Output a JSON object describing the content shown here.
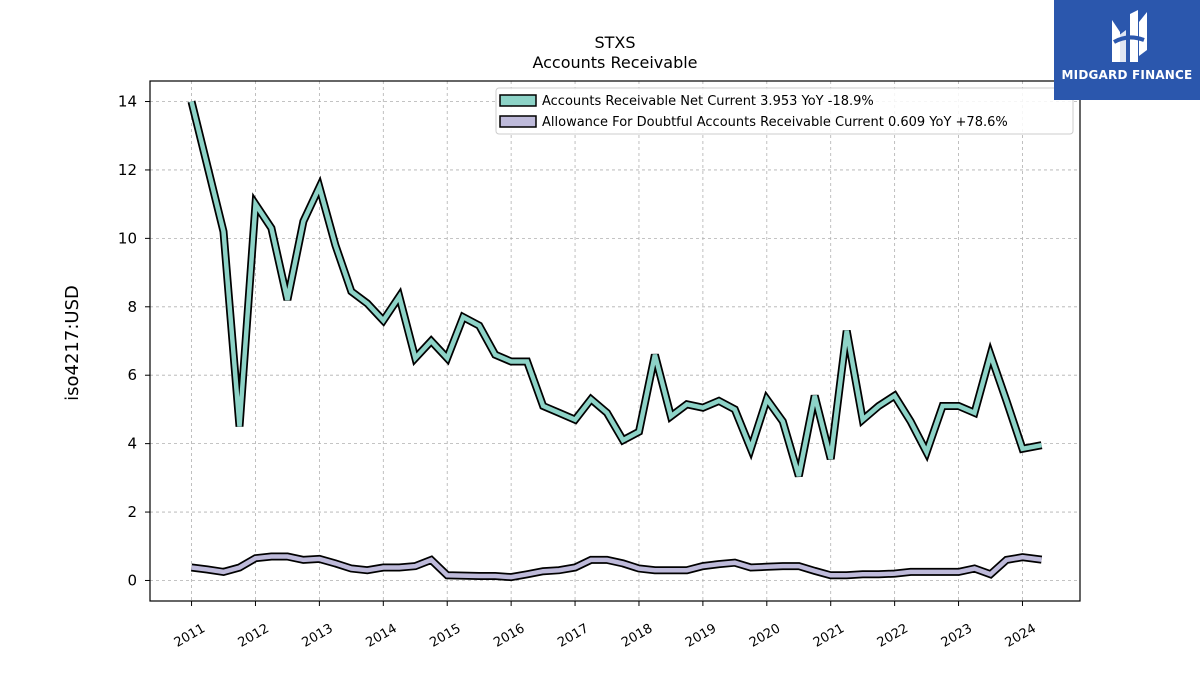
{
  "logo": {
    "text": "MIDGARD FINANCE"
  },
  "chart_data": {
    "type": "line",
    "title": "STXS",
    "subtitle": "Accounts Receivable",
    "xlabel": "",
    "ylabel": "iso4217:USD",
    "ylim": [
      -0.6,
      14.6
    ],
    "xlim": [
      2010.35,
      2024.9
    ],
    "yticks": [
      0,
      2,
      4,
      6,
      8,
      10,
      12,
      14
    ],
    "xticks": [
      "2011",
      "2012",
      "2013",
      "2014",
      "2015",
      "2016",
      "2017",
      "2018",
      "2019",
      "2020",
      "2021",
      "2022",
      "2023",
      "2024"
    ],
    "grid": true,
    "legend_position": "top-right",
    "series": [
      {
        "name": "Accounts Receivable Net Current  3.953 YoY -18.9%",
        "color": "#8dd3c7",
        "points": [
          [
            2011.0,
            14.0
          ],
          [
            2011.5,
            10.2
          ],
          [
            2011.75,
            4.5
          ],
          [
            2012.0,
            11.0
          ],
          [
            2012.25,
            10.3
          ],
          [
            2012.5,
            8.2
          ],
          [
            2012.75,
            10.5
          ],
          [
            2013.0,
            11.5
          ],
          [
            2013.25,
            9.8
          ],
          [
            2013.5,
            8.45
          ],
          [
            2013.75,
            8.1
          ],
          [
            2014.0,
            7.6
          ],
          [
            2014.25,
            8.3
          ],
          [
            2014.5,
            6.5
          ],
          [
            2014.75,
            7.0
          ],
          [
            2015.0,
            6.5
          ],
          [
            2015.25,
            7.7
          ],
          [
            2015.5,
            7.45
          ],
          [
            2015.75,
            6.6
          ],
          [
            2016.0,
            6.4
          ],
          [
            2016.25,
            6.4
          ],
          [
            2016.5,
            5.1
          ],
          [
            2016.75,
            4.9
          ],
          [
            2017.0,
            4.7
          ],
          [
            2017.25,
            5.3
          ],
          [
            2017.5,
            4.9
          ],
          [
            2017.75,
            4.1
          ],
          [
            2018.0,
            4.35
          ],
          [
            2018.25,
            6.6
          ],
          [
            2018.5,
            4.8
          ],
          [
            2018.75,
            5.15
          ],
          [
            2019.0,
            5.05
          ],
          [
            2019.25,
            5.25
          ],
          [
            2019.5,
            5.0
          ],
          [
            2019.75,
            3.85
          ],
          [
            2020.0,
            5.3
          ],
          [
            2020.25,
            4.65
          ],
          [
            2020.5,
            3.05
          ],
          [
            2020.75,
            5.4
          ],
          [
            2021.0,
            3.55
          ],
          [
            2021.25,
            7.3
          ],
          [
            2021.5,
            4.7
          ],
          [
            2021.75,
            5.1
          ],
          [
            2022.0,
            5.4
          ],
          [
            2022.25,
            4.65
          ],
          [
            2022.5,
            3.75
          ],
          [
            2022.75,
            5.1
          ],
          [
            2023.0,
            5.1
          ],
          [
            2023.25,
            4.9
          ],
          [
            2023.5,
            6.6
          ],
          [
            2023.75,
            5.25
          ],
          [
            2024.0,
            3.85
          ],
          [
            2024.3,
            3.953
          ]
        ]
      },
      {
        "name": "Allowance For Doubtful Accounts Receivable Current  0.609 YoY +78.6%",
        "color": "#bebada",
        "points": [
          [
            2011.0,
            0.38
          ],
          [
            2011.25,
            0.32
          ],
          [
            2011.5,
            0.25
          ],
          [
            2011.75,
            0.38
          ],
          [
            2012.0,
            0.65
          ],
          [
            2012.25,
            0.7
          ],
          [
            2012.5,
            0.7
          ],
          [
            2012.75,
            0.6
          ],
          [
            2013.0,
            0.63
          ],
          [
            2013.25,
            0.5
          ],
          [
            2013.5,
            0.35
          ],
          [
            2013.75,
            0.3
          ],
          [
            2014.0,
            0.38
          ],
          [
            2014.25,
            0.38
          ],
          [
            2014.5,
            0.42
          ],
          [
            2014.75,
            0.6
          ],
          [
            2015.0,
            0.15
          ],
          [
            2015.5,
            0.13
          ],
          [
            2015.75,
            0.13
          ],
          [
            2016.0,
            0.1
          ],
          [
            2016.25,
            0.18
          ],
          [
            2016.5,
            0.27
          ],
          [
            2016.75,
            0.3
          ],
          [
            2017.0,
            0.38
          ],
          [
            2017.25,
            0.6
          ],
          [
            2017.5,
            0.6
          ],
          [
            2017.75,
            0.5
          ],
          [
            2018.0,
            0.35
          ],
          [
            2018.25,
            0.3
          ],
          [
            2018.5,
            0.3
          ],
          [
            2018.75,
            0.3
          ],
          [
            2019.0,
            0.42
          ],
          [
            2019.25,
            0.48
          ],
          [
            2019.5,
            0.52
          ],
          [
            2019.75,
            0.38
          ],
          [
            2020.0,
            0.4
          ],
          [
            2020.25,
            0.42
          ],
          [
            2020.5,
            0.42
          ],
          [
            2020.75,
            0.28
          ],
          [
            2021.0,
            0.15
          ],
          [
            2021.25,
            0.15
          ],
          [
            2021.5,
            0.18
          ],
          [
            2021.75,
            0.18
          ],
          [
            2022.0,
            0.2
          ],
          [
            2022.25,
            0.25
          ],
          [
            2022.5,
            0.25
          ],
          [
            2022.75,
            0.25
          ],
          [
            2023.0,
            0.25
          ],
          [
            2023.25,
            0.35
          ],
          [
            2023.5,
            0.18
          ],
          [
            2023.75,
            0.6
          ],
          [
            2024.0,
            0.68
          ],
          [
            2024.3,
            0.609
          ]
        ]
      }
    ]
  }
}
